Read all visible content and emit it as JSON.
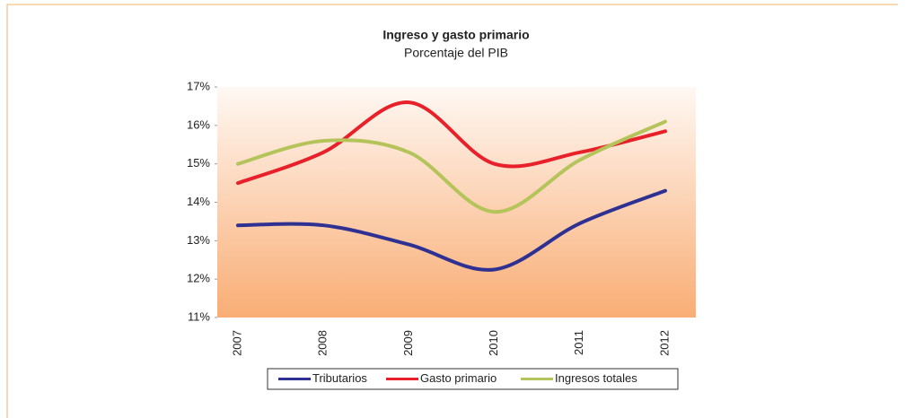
{
  "chart_data": {
    "type": "line",
    "title": "Ingreso y gasto primario",
    "subtitle": "Porcentaje del PIB",
    "categories": [
      "2007",
      "2008",
      "2009",
      "2010",
      "2011",
      "2012"
    ],
    "series": [
      {
        "name": "Tributarios",
        "color": "#2e3192",
        "values": [
          13.4,
          13.4,
          12.9,
          12.25,
          13.45,
          14.3
        ]
      },
      {
        "name": "Gasto primario",
        "color": "#e8202a",
        "values": [
          14.5,
          15.3,
          16.6,
          15.0,
          15.3,
          15.85
        ]
      },
      {
        "name": "Ingresos totales",
        "color": "#b5c45a",
        "values": [
          15.0,
          15.6,
          15.3,
          13.75,
          15.1,
          16.1
        ]
      }
    ],
    "ylim": [
      11,
      17
    ],
    "yticks": [
      {
        "value": 11,
        "label": "11%"
      },
      {
        "value": 12,
        "label": "12%"
      },
      {
        "value": 13,
        "label": "13%"
      },
      {
        "value": 14,
        "label": "14%"
      },
      {
        "value": 15,
        "label": "15%"
      },
      {
        "value": 16,
        "label": "16%"
      },
      {
        "value": 17,
        "label": "17%"
      }
    ],
    "legend": "bottom"
  }
}
